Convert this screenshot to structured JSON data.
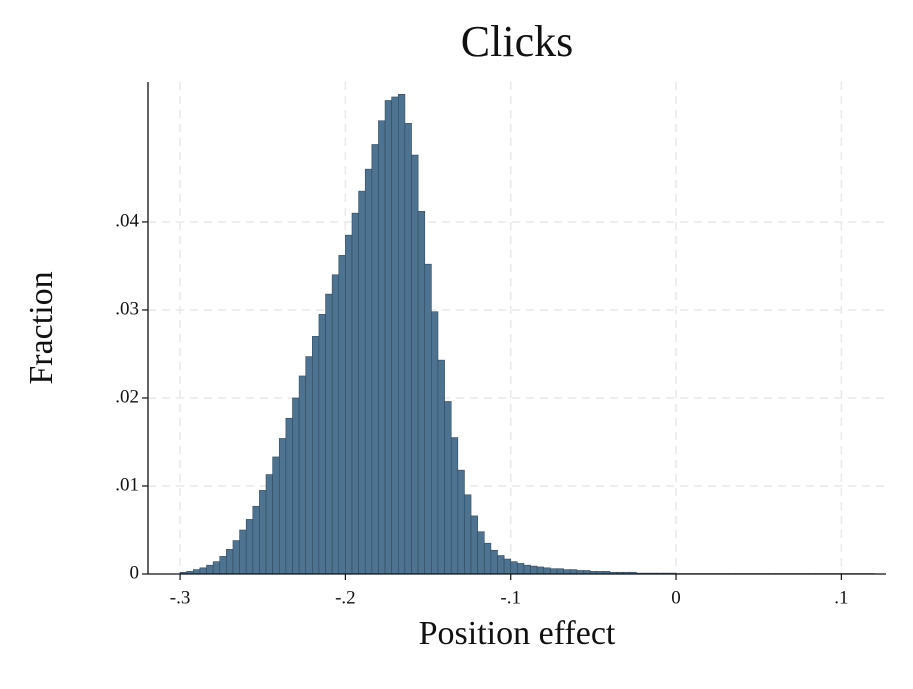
{
  "chart_data": {
    "type": "histogram",
    "title": "Clicks",
    "x_label": "Position effect",
    "y_label": "Fraction",
    "color": "#4e7390",
    "edge_color": "#2f4b60",
    "grid": true,
    "bins": [
      -0.3,
      -0.296,
      -0.292,
      -0.288,
      -0.284,
      -0.28,
      -0.276,
      -0.272,
      -0.268,
      -0.264,
      -0.26,
      -0.256,
      -0.252,
      -0.248,
      -0.244,
      -0.24,
      -0.236,
      -0.232,
      -0.228,
      -0.224,
      -0.22,
      -0.216,
      -0.212,
      -0.208,
      -0.204,
      -0.2,
      -0.196,
      -0.192,
      -0.188,
      -0.184,
      -0.18,
      -0.176,
      -0.172,
      -0.168,
      -0.164,
      -0.16,
      -0.156,
      -0.152,
      -0.148,
      -0.144,
      -0.14,
      -0.136,
      -0.132,
      -0.128,
      -0.124,
      -0.12,
      -0.116,
      -0.112,
      -0.108,
      -0.104,
      -0.1,
      -0.096,
      -0.092,
      -0.088,
      -0.084,
      -0.08,
      -0.076,
      -0.072,
      -0.068,
      -0.064,
      -0.06,
      -0.056,
      -0.052,
      -0.048,
      -0.044,
      -0.04,
      -0.036,
      -0.032,
      -0.028,
      -0.024,
      -0.02,
      -0.016,
      -0.012,
      -0.008,
      -0.004,
      0,
      0.004,
      0.008,
      0.012,
      0.016,
      0.02,
      0.024,
      0.028,
      0.032,
      0.036,
      0.04,
      0.044,
      0.048,
      0.052,
      0.056,
      0.06,
      0.064,
      0.068,
      0.072,
      0.076,
      0.08,
      0.084,
      0.088,
      0.092,
      0.096,
      0.1,
      0.104,
      0.108,
      0.112,
      0.116,
      0.12
    ],
    "values": [
      0.0002,
      0.0003,
      0.0005,
      0.0007,
      0.001,
      0.0014,
      0.002,
      0.0028,
      0.0038,
      0.005,
      0.0062,
      0.0077,
      0.0095,
      0.0113,
      0.0133,
      0.0154,
      0.0177,
      0.02,
      0.0225,
      0.0247,
      0.027,
      0.0295,
      0.0318,
      0.034,
      0.0362,
      0.0385,
      0.041,
      0.0435,
      0.046,
      0.0488,
      0.0515,
      0.0538,
      0.0542,
      0.0545,
      0.0512,
      0.0476,
      0.0412,
      0.0352,
      0.0298,
      0.0243,
      0.0196,
      0.0155,
      0.0118,
      0.009,
      0.0066,
      0.0048,
      0.0035,
      0.0027,
      0.0021,
      0.0017,
      0.0014,
      0.0012,
      0.001,
      0.0009,
      0.0008,
      0.0007,
      0.0006,
      0.0006,
      0.0005,
      0.0005,
      0.0004,
      0.0004,
      0.0003,
      0.0003,
      0.0003,
      0.0002,
      0.0002,
      0.0002,
      0.0002,
      0.0001,
      0.0001,
      0.0001,
      0.0001,
      0.0001,
      0.0001,
      5e-05,
      5e-05,
      5e-05,
      5e-05,
      5e-05,
      5e-05,
      5e-05,
      5e-05,
      5e-05,
      5e-05,
      5e-05,
      5e-05,
      5e-05,
      5e-05,
      5e-05,
      5e-05,
      5e-05,
      5e-05,
      5e-05,
      5e-05,
      5e-05,
      5e-05,
      5e-05,
      5e-05,
      5e-05,
      5e-05,
      5e-05,
      5e-05,
      5e-05,
      5e-05
    ],
    "xlim": [
      -0.3194,
      0.127
    ],
    "ylim": [
      0,
      0.0559
    ],
    "xticks": [
      {
        "value": -0.3,
        "label": "-.3"
      },
      {
        "value": -0.2,
        "label": "-.2"
      },
      {
        "value": -0.1,
        "label": "-.1"
      },
      0,
      {
        "value": 0.1,
        "label": ".1"
      }
    ],
    "yticks": [
      0,
      {
        "value": 0.01,
        "label": ".01"
      },
      {
        "value": 0.02,
        "label": ".02"
      },
      {
        "value": 0.03,
        "label": ".03"
      },
      {
        "value": 0.04,
        "label": ".04"
      }
    ]
  }
}
